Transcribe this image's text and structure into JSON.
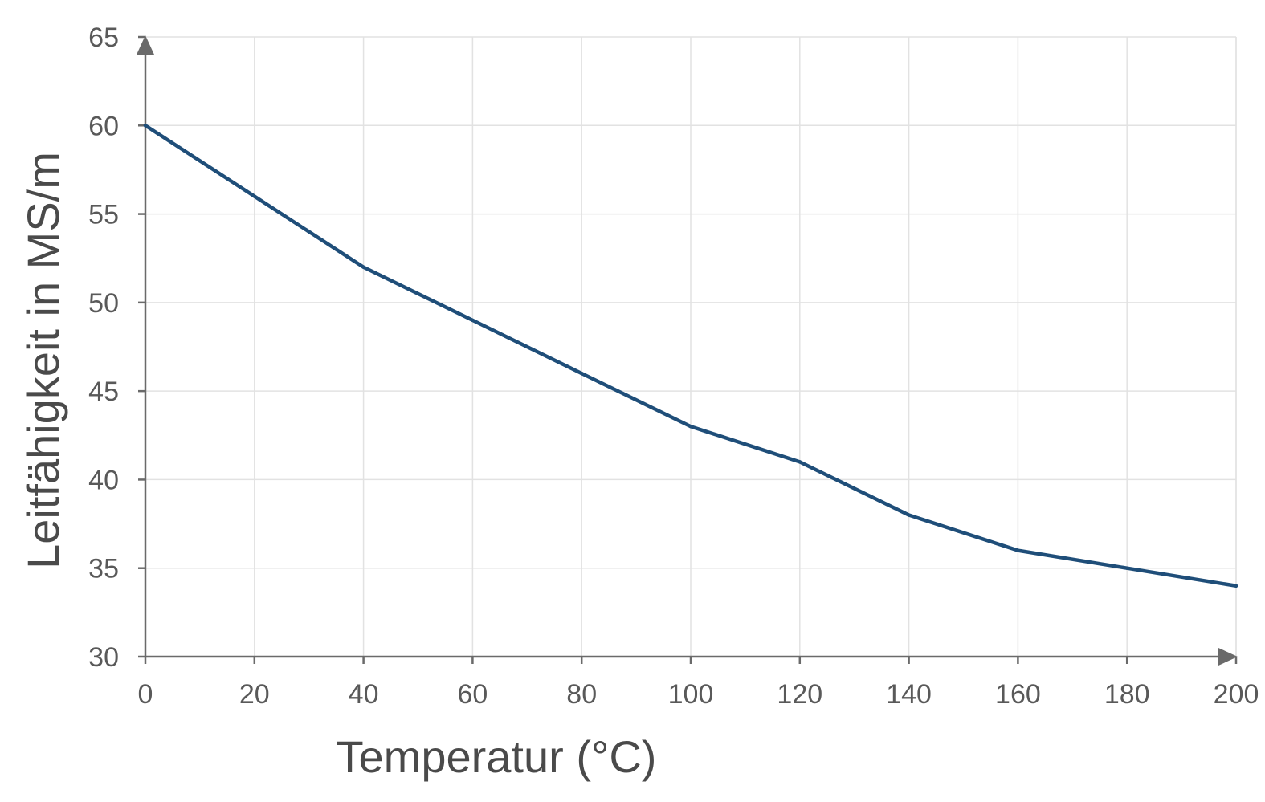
{
  "chart_data": {
    "type": "line",
    "xlabel": "Temperatur (°C)",
    "ylabel": "Leitfähigkeit in MS/m",
    "xlim": [
      0,
      200
    ],
    "ylim": [
      30,
      65
    ],
    "x_ticks": [
      "0",
      "20",
      "40",
      "60",
      "80",
      "100",
      "120",
      "140",
      "160",
      "180",
      "200"
    ],
    "y_ticks": [
      "30",
      "35",
      "40",
      "45",
      "50",
      "55",
      "60",
      "65"
    ],
    "grid": true,
    "x": [
      0,
      20,
      40,
      60,
      80,
      100,
      120,
      140,
      160,
      180,
      200
    ],
    "series": [
      {
        "values": [
          60,
          56,
          52,
          49,
          46,
          43,
          41,
          38,
          36,
          35,
          34
        ],
        "color": "#1f4e79"
      }
    ],
    "axis_color": "#6a6a6a",
    "grid_color": "#e2e2e2"
  }
}
